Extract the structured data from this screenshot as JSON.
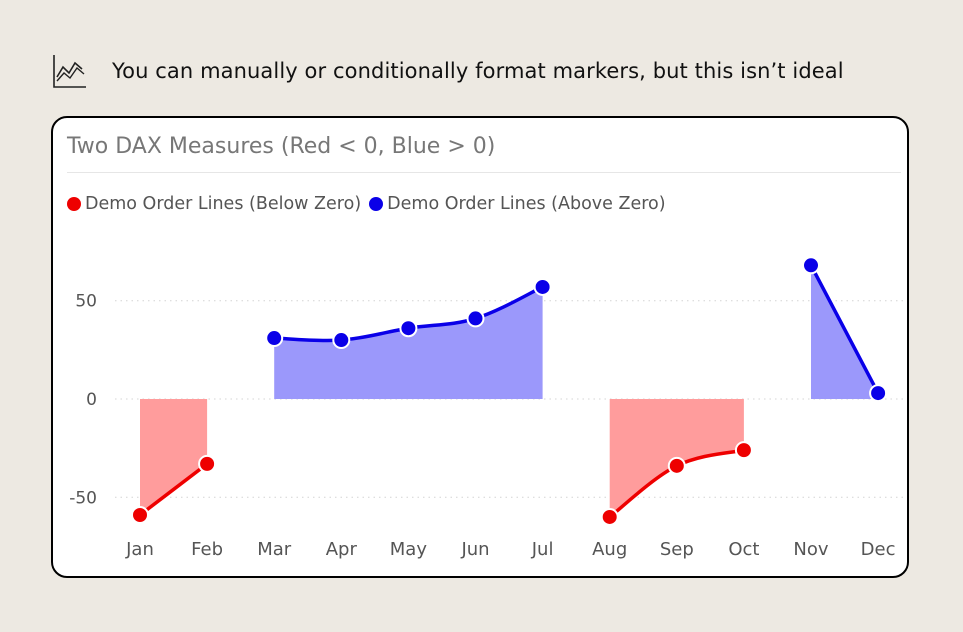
{
  "header": {
    "text": "You can manually or conditionally format markers, but this isn’t ideal",
    "icon": "line-chart-icon"
  },
  "colors": {
    "background": "#ede9e2",
    "red_line": "#ee0000",
    "red_area": "#ff9c9c",
    "blue_line": "#0a00e8",
    "blue_area": "#9b98fb"
  },
  "chart_data": {
    "type": "area",
    "title": "Two DAX Measures (Red < 0, Blue > 0)",
    "xlabel": "",
    "ylabel": "",
    "categories": [
      "Jan",
      "Feb",
      "Mar",
      "Apr",
      "May",
      "Jun",
      "Jul",
      "Aug",
      "Sep",
      "Oct",
      "Nov",
      "Dec"
    ],
    "y_ticks": [
      50,
      0,
      -50
    ],
    "ylim": [
      -65,
      85
    ],
    "grid": true,
    "legend_position": "top-left",
    "series": [
      {
        "name": "Demo Order Lines (Below Zero)",
        "color": "#ee0000",
        "values": [
          -59,
          -33,
          null,
          null,
          null,
          null,
          null,
          -60,
          -34,
          -26,
          null,
          null
        ]
      },
      {
        "name": "Demo Order Lines (Above Zero)",
        "color": "#0a00e8",
        "values": [
          null,
          null,
          31,
          30,
          36,
          41,
          57,
          null,
          null,
          null,
          68,
          3
        ]
      }
    ]
  }
}
